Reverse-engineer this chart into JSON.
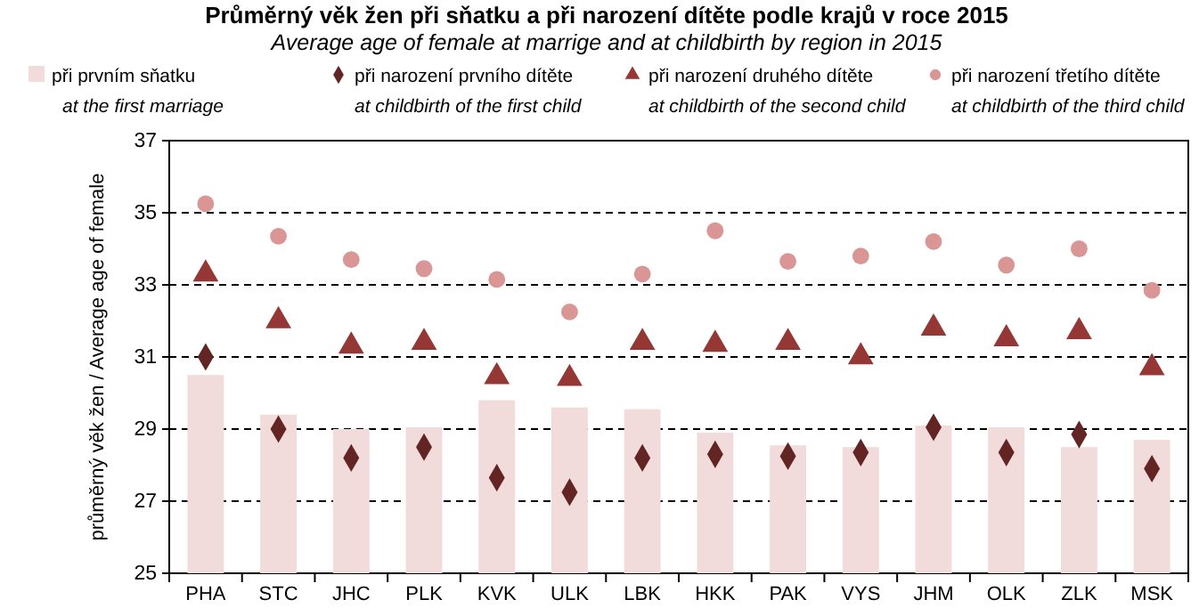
{
  "chart_data": {
    "type": "bar",
    "title": "Průměrný věk žen při sňatku a při narození dítěte podle krajů v roce 2015",
    "subtitle": "Average age of female at marrige and at childbirth by region in 2015",
    "ylabel": "průměrný věk žen / Average age of female",
    "categories": [
      "PHA",
      "STC",
      "JHC",
      "PLK",
      "KVK",
      "ULK",
      "LBK",
      "HKK",
      "PAK",
      "VYS",
      "JHM",
      "OLK",
      "ZLK",
      "MSK"
    ],
    "series": [
      {
        "name": "při prvním sňatku\nat the first marriage",
        "color": "#f2dcdb",
        "values": [
          30.5,
          29.4,
          29.0,
          29.05,
          29.8,
          29.6,
          29.55,
          28.9,
          28.55,
          28.5,
          29.1,
          29.05,
          28.5,
          28.7
        ]
      },
      {
        "name": "při narození prvního dítěte\nat childbirth of the first child",
        "type": "scatter",
        "marker": "diamond",
        "color": "#632523",
        "values": [
          31.0,
          29.0,
          28.2,
          28.5,
          27.65,
          27.25,
          28.2,
          28.3,
          28.25,
          28.35,
          29.05,
          28.35,
          28.85,
          27.9
        ]
      },
      {
        "name": "při narození druhého dítěte\nat childbirth of the second child",
        "type": "scatter",
        "marker": "triangle",
        "color": "#953735",
        "values": [
          33.3,
          32.0,
          31.3,
          31.4,
          30.45,
          30.4,
          31.4,
          31.35,
          31.4,
          31.0,
          31.8,
          31.5,
          31.7,
          30.7
        ]
      },
      {
        "name": "při narození třetího dítěte\nat childbirth of the third child",
        "type": "scatter",
        "marker": "circle",
        "color": "#d99694",
        "values": [
          35.25,
          34.35,
          33.7,
          33.45,
          33.15,
          32.25,
          33.3,
          34.5,
          33.65,
          33.8,
          34.2,
          33.55,
          34.0,
          32.85
        ]
      }
    ],
    "ylim": [
      25,
      37
    ],
    "yticks": [
      25,
      27,
      29,
      31,
      33,
      35,
      37
    ],
    "grid": "y",
    "legend": "top"
  }
}
